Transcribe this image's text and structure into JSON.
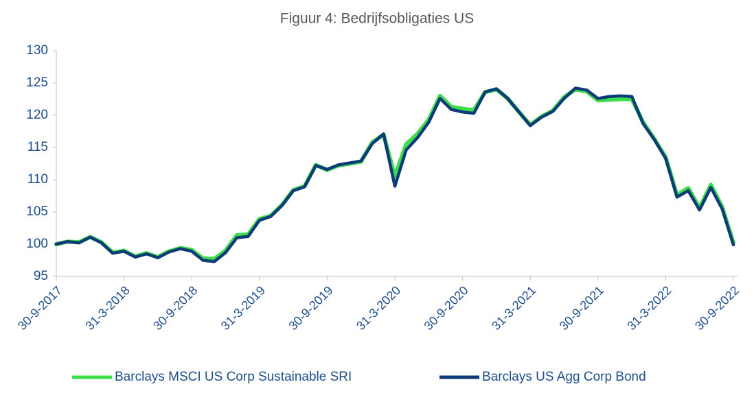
{
  "chart_data": {
    "type": "line",
    "title": "Figuur 4: Bedrijfsobligaties US",
    "categories": [
      "30-9-2017",
      null,
      null,
      null,
      null,
      null,
      "31-3-2018",
      null,
      null,
      null,
      null,
      null,
      "30-9-2018",
      null,
      null,
      null,
      null,
      null,
      "31-3-2019",
      null,
      null,
      null,
      null,
      null,
      "30-9-2019",
      null,
      null,
      null,
      null,
      null,
      "31-3-2020",
      null,
      null,
      null,
      null,
      null,
      "30-9-2020",
      null,
      null,
      null,
      null,
      null,
      "31-3-2021",
      null,
      null,
      null,
      null,
      null,
      "30-9-2021",
      null,
      null,
      null,
      null,
      null,
      "31-3-2022",
      null,
      null,
      null,
      null,
      null,
      "30-9-2022"
    ],
    "series": [
      {
        "name": "Barclays MSCI US Corp Sustainable SRI",
        "color": "#3ddc4a",
        "values": [
          100,
          100.4,
          100.3,
          101.1,
          100.3,
          98.7,
          99.0,
          98.1,
          98.6,
          98.0,
          98.9,
          99.4,
          99.1,
          97.8,
          97.7,
          99.0,
          101.4,
          101.5,
          103.9,
          104.4,
          106.1,
          108.4,
          109.0,
          112.3,
          111.5,
          112.2,
          112.5,
          112.8,
          115.8,
          117.0,
          110.5,
          115.5,
          117.1,
          119.3,
          123.0,
          121.3,
          121.0,
          120.8,
          123.6,
          124.0,
          122.6,
          120.5,
          118.5,
          119.8,
          120.7,
          122.8,
          124.0,
          123.7,
          122.3,
          122.4,
          122.5,
          122.5,
          118.9,
          116.3,
          113.5,
          107.6,
          108.7,
          105.6,
          109.2,
          105.8,
          100.2
        ]
      },
      {
        "name": "Barclays US Agg Corp Bond",
        "color": "#0d3b7a",
        "values": [
          100,
          100.4,
          100.2,
          101.1,
          100.2,
          98.6,
          98.9,
          98.0,
          98.5,
          97.9,
          98.8,
          99.3,
          98.9,
          97.5,
          97.3,
          98.7,
          101.0,
          101.2,
          103.7,
          104.3,
          106.0,
          108.3,
          108.9,
          112.2,
          111.6,
          112.3,
          112.6,
          112.9,
          115.6,
          117.1,
          109.0,
          114.6,
          116.5,
          118.9,
          122.6,
          120.9,
          120.5,
          120.3,
          123.6,
          124.1,
          122.6,
          120.5,
          118.4,
          119.7,
          120.6,
          122.6,
          124.2,
          123.9,
          122.6,
          122.9,
          123.0,
          122.9,
          118.7,
          116.2,
          113.3,
          107.3,
          108.3,
          105.3,
          108.8,
          105.5,
          99.9
        ]
      }
    ],
    "ylim": [
      95,
      130
    ],
    "yticks": [
      95,
      100,
      105,
      110,
      115,
      120,
      125,
      130
    ],
    "grid": false
  }
}
